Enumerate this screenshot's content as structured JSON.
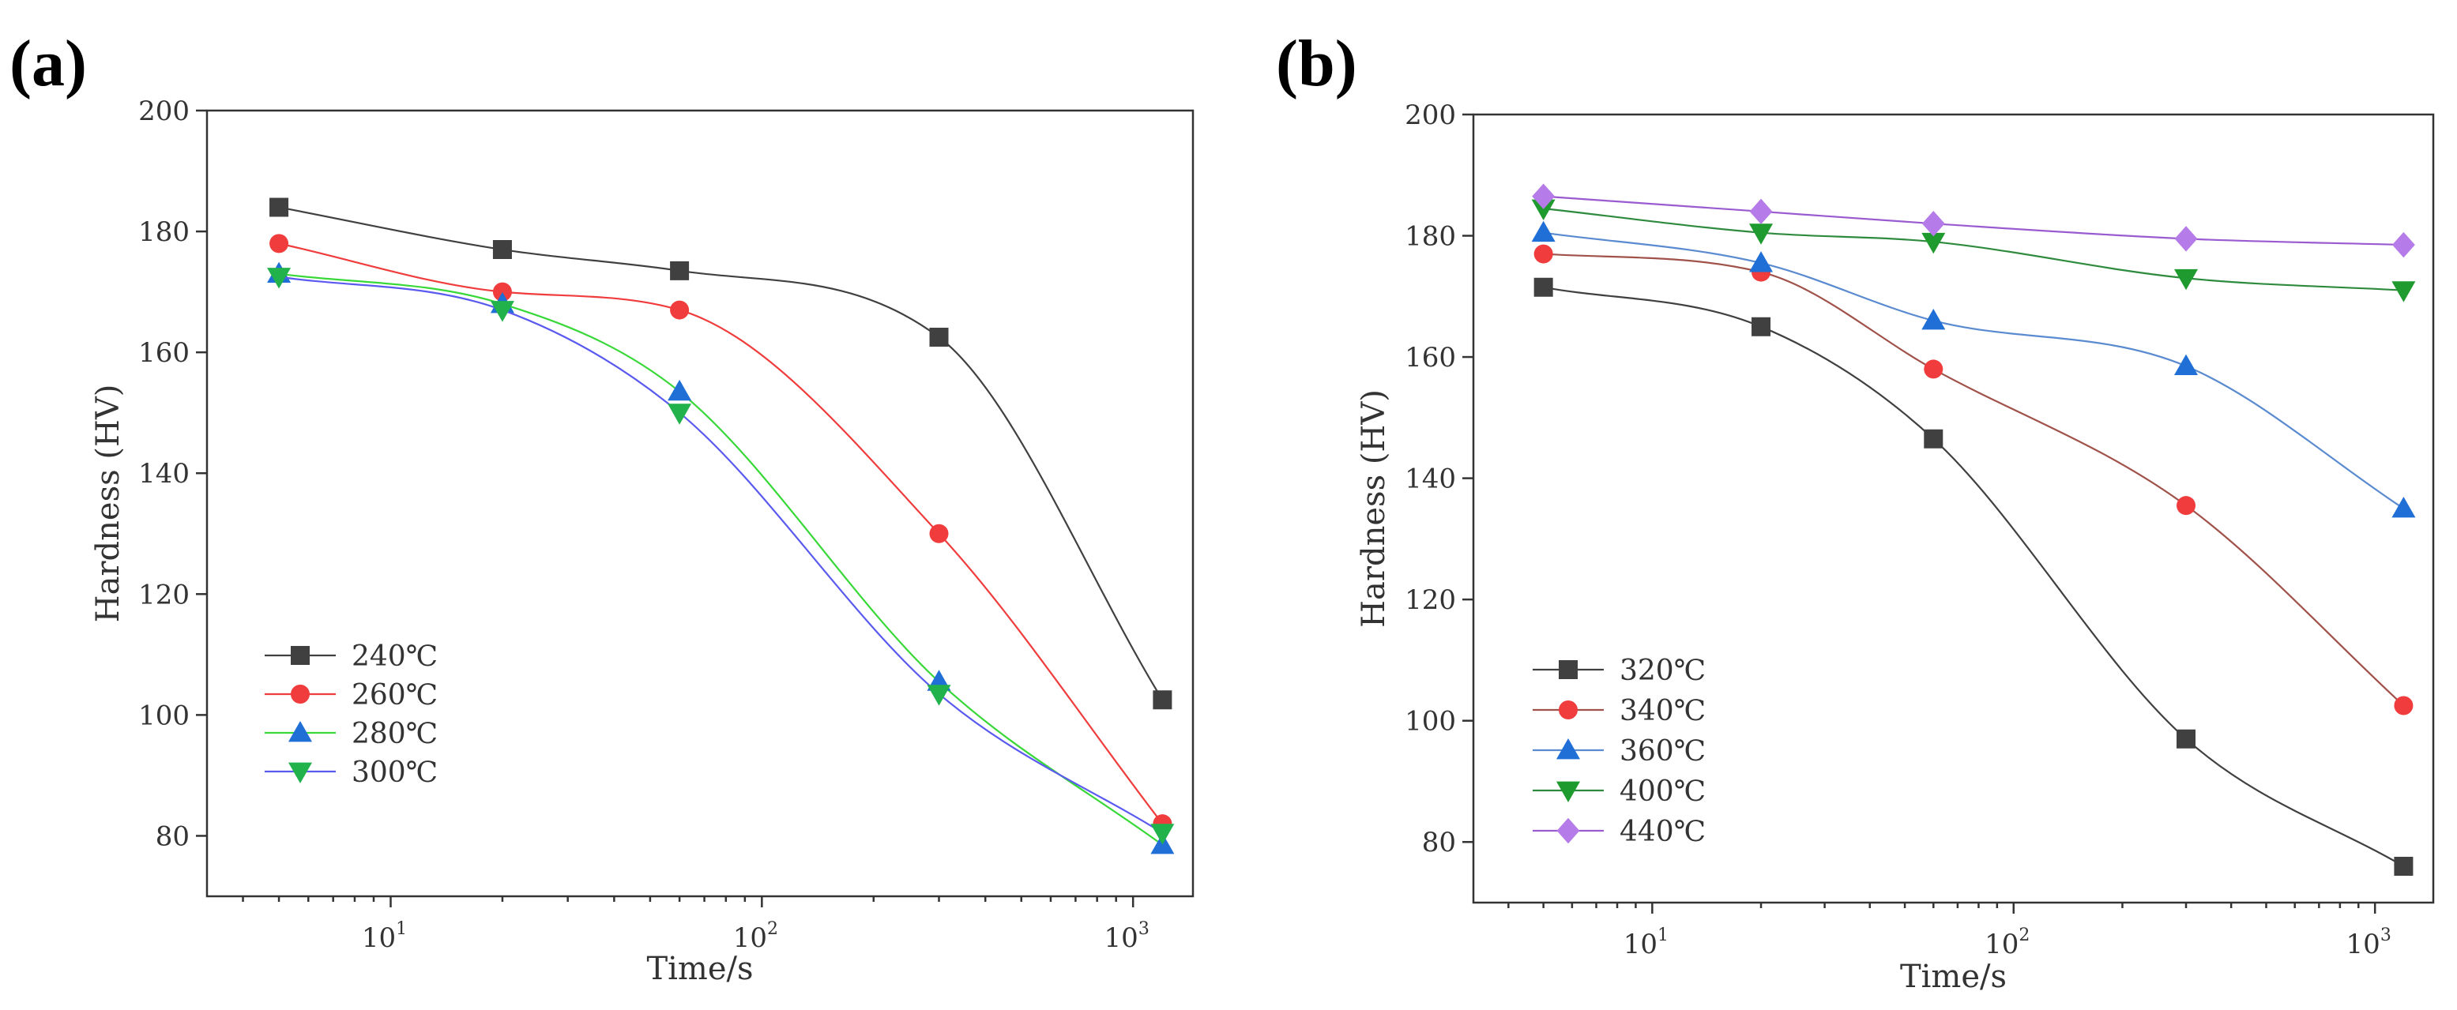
{
  "chart_data": [
    {
      "type": "line",
      "panel_label": "(a)",
      "xlabel": "Time/s",
      "ylabel": "Hardness (HV)",
      "xscale": "log",
      "xlim": [
        3.2,
        1450
      ],
      "ylim": [
        70,
        200
      ],
      "yticks": [
        80,
        100,
        120,
        140,
        160,
        180,
        200
      ],
      "xticks": [
        {
          "value": 10,
          "base": "10",
          "exp": "1"
        },
        {
          "value": 100,
          "base": "10",
          "exp": "2"
        },
        {
          "value": 1000,
          "base": "10",
          "exp": "3"
        }
      ],
      "x": [
        5,
        20,
        60,
        300,
        1200
      ],
      "legend_position": "lower-left",
      "series": [
        {
          "name": "240℃",
          "color": "#404040",
          "marker": "square",
          "values": [
            184,
            177,
            173.5,
            162.5,
            102.5
          ]
        },
        {
          "name": "260℃",
          "color": "#f03c3c",
          "marker": "circle",
          "values": [
            178,
            170,
            167,
            130,
            82
          ]
        },
        {
          "name": "280℃",
          "color": "#38d838",
          "line_color": "#38d838",
          "marker_color": "#1f6fd6",
          "marker": "triangle-up",
          "values": [
            173,
            168,
            153.5,
            105.5,
            78.5
          ]
        },
        {
          "name": "300℃",
          "color": "#5a5af0",
          "line_color": "#5a5af0",
          "marker_color": "#22b24c",
          "marker": "triangle-down",
          "values": [
            172.5,
            167,
            150,
            103.5,
            80.5
          ]
        }
      ]
    },
    {
      "type": "line",
      "panel_label": "(b)",
      "xlabel": "Time/s",
      "ylabel": "Hardness (HV)",
      "xscale": "log",
      "xlim": [
        3.2,
        1450
      ],
      "ylim": [
        70,
        200
      ],
      "yticks": [
        80,
        100,
        120,
        140,
        160,
        180,
        200
      ],
      "xticks": [
        {
          "value": 10,
          "base": "10",
          "exp": "1"
        },
        {
          "value": 100,
          "base": "10",
          "exp": "2"
        },
        {
          "value": 1000,
          "base": "10",
          "exp": "3"
        }
      ],
      "x": [
        5,
        20,
        60,
        300,
        1200
      ],
      "legend_position": "lower-left",
      "series": [
        {
          "name": "320℃",
          "color": "#404040",
          "marker": "square",
          "values": [
            171.5,
            165,
            146.5,
            97,
            76
          ]
        },
        {
          "name": "340℃",
          "color": "#a0524a",
          "line_color": "#a0524a",
          "marker_color": "#f03c3c",
          "marker": "circle",
          "values": [
            177,
            174,
            158,
            135.5,
            102.5
          ]
        },
        {
          "name": "360℃",
          "color": "#5a8ad0",
          "line_color": "#5a8ad0",
          "marker_color": "#1f6fd6",
          "marker": "triangle-up",
          "values": [
            180.5,
            175.5,
            166,
            158.5,
            135
          ]
        },
        {
          "name": "400℃",
          "color": "#2e8b3e",
          "line_color": "#2e8b3e",
          "marker_color": "#1f9a2e",
          "marker": "triangle-down",
          "values": [
            184.5,
            180.5,
            179,
            173,
            171
          ]
        },
        {
          "name": "440℃",
          "color": "#9a5ad0",
          "line_color": "#9a5ad0",
          "marker_color": "#b57be8",
          "marker": "diamond",
          "values": [
            186.5,
            184,
            182,
            179.5,
            178.5
          ]
        }
      ]
    }
  ]
}
